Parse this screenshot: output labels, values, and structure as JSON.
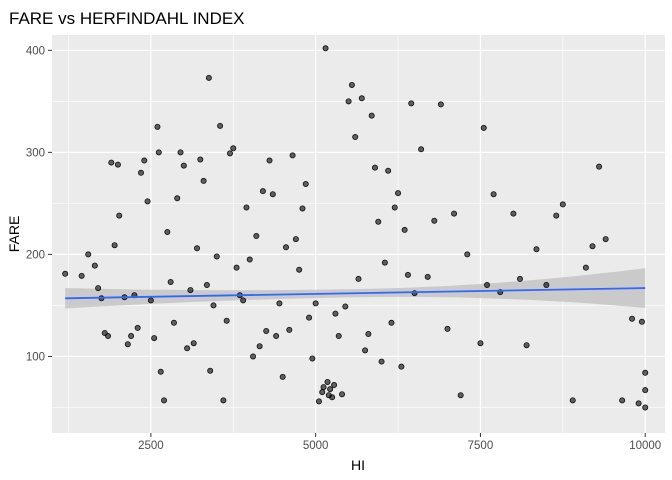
{
  "chart_data": {
    "type": "scatter",
    "title": "FARE vs HERFINDAHL INDEX",
    "xlabel": "HI",
    "ylabel": "FARE",
    "xlim": [
      1000,
      10300
    ],
    "ylim": [
      25,
      415
    ],
    "x_ticks": [
      2500,
      5000,
      7500,
      10000
    ],
    "x_tick_labels": [
      "2500",
      "5000",
      "7500",
      "10000"
    ],
    "y_ticks": [
      100,
      200,
      300,
      400
    ],
    "y_tick_labels": [
      "100",
      "200",
      "300",
      "400"
    ],
    "grid": true,
    "legend": "none",
    "colors": {
      "panel": "#ebebeb",
      "grid": "#ffffff",
      "point": "#000000",
      "trend": "#3366ff",
      "band": "#bfbfbf"
    },
    "trend_line": {
      "method": "lm",
      "x": [
        1200,
        10000
      ],
      "y": [
        157,
        167
      ]
    },
    "confidence_band": {
      "x": [
        1200,
        10000
      ],
      "lower": [
        147,
        148
      ],
      "upper": [
        167,
        187
      ]
    },
    "points": [
      [
        1200,
        181
      ],
      [
        1450,
        179
      ],
      [
        1550,
        200
      ],
      [
        1650,
        189
      ],
      [
        1700,
        167
      ],
      [
        1750,
        157
      ],
      [
        1800,
        123
      ],
      [
        1850,
        120
      ],
      [
        1900,
        290
      ],
      [
        1950,
        209
      ],
      [
        2000,
        288
      ],
      [
        2020,
        238
      ],
      [
        2100,
        158
      ],
      [
        2150,
        112
      ],
      [
        2200,
        120
      ],
      [
        2250,
        160
      ],
      [
        2300,
        128
      ],
      [
        2350,
        280
      ],
      [
        2400,
        292
      ],
      [
        2450,
        252
      ],
      [
        2500,
        155
      ],
      [
        2550,
        118
      ],
      [
        2600,
        325
      ],
      [
        2620,
        300
      ],
      [
        2650,
        85
      ],
      [
        2700,
        57
      ],
      [
        2750,
        222
      ],
      [
        2800,
        173
      ],
      [
        2850,
        133
      ],
      [
        2900,
        255
      ],
      [
        2950,
        300
      ],
      [
        3000,
        287
      ],
      [
        3050,
        108
      ],
      [
        3100,
        165
      ],
      [
        3150,
        113
      ],
      [
        3200,
        206
      ],
      [
        3250,
        293
      ],
      [
        3300,
        272
      ],
      [
        3350,
        170
      ],
      [
        3380,
        373
      ],
      [
        3400,
        86
      ],
      [
        3450,
        150
      ],
      [
        3500,
        198
      ],
      [
        3550,
        326
      ],
      [
        3600,
        57
      ],
      [
        3650,
        135
      ],
      [
        3700,
        299
      ],
      [
        3750,
        304
      ],
      [
        3800,
        187
      ],
      [
        3850,
        160
      ],
      [
        3900,
        155
      ],
      [
        3950,
        246
      ],
      [
        4000,
        195
      ],
      [
        4050,
        100
      ],
      [
        4100,
        218
      ],
      [
        4150,
        110
      ],
      [
        4200,
        262
      ],
      [
        4250,
        125
      ],
      [
        4300,
        292
      ],
      [
        4350,
        259
      ],
      [
        4400,
        120
      ],
      [
        4450,
        152
      ],
      [
        4500,
        80
      ],
      [
        4550,
        207
      ],
      [
        4600,
        126
      ],
      [
        4650,
        297
      ],
      [
        4700,
        215
      ],
      [
        4750,
        185
      ],
      [
        4800,
        245
      ],
      [
        4850,
        269
      ],
      [
        4900,
        138
      ],
      [
        4950,
        98
      ],
      [
        5000,
        152
      ],
      [
        5050,
        56
      ],
      [
        5100,
        65
      ],
      [
        5120,
        70
      ],
      [
        5150,
        402
      ],
      [
        5180,
        75
      ],
      [
        5200,
        62
      ],
      [
        5220,
        68
      ],
      [
        5250,
        60
      ],
      [
        5280,
        72
      ],
      [
        5300,
        142
      ],
      [
        5350,
        120
      ],
      [
        5400,
        63
      ],
      [
        5450,
        149
      ],
      [
        5500,
        350
      ],
      [
        5550,
        366
      ],
      [
        5600,
        315
      ],
      [
        5650,
        176
      ],
      [
        5700,
        353
      ],
      [
        5750,
        106
      ],
      [
        5800,
        122
      ],
      [
        5850,
        336
      ],
      [
        5900,
        285
      ],
      [
        5950,
        232
      ],
      [
        6000,
        95
      ],
      [
        6050,
        192
      ],
      [
        6100,
        282
      ],
      [
        6150,
        133
      ],
      [
        6200,
        246
      ],
      [
        6250,
        260
      ],
      [
        6300,
        90
      ],
      [
        6350,
        224
      ],
      [
        6400,
        180
      ],
      [
        6450,
        348
      ],
      [
        6500,
        162
      ],
      [
        6600,
        303
      ],
      [
        6700,
        178
      ],
      [
        6800,
        233
      ],
      [
        6900,
        347
      ],
      [
        7000,
        127
      ],
      [
        7100,
        240
      ],
      [
        7200,
        62
      ],
      [
        7300,
        200
      ],
      [
        7500,
        113
      ],
      [
        7550,
        324
      ],
      [
        7600,
        170
      ],
      [
        7700,
        259
      ],
      [
        7800,
        163
      ],
      [
        8000,
        240
      ],
      [
        8100,
        176
      ],
      [
        8200,
        111
      ],
      [
        8350,
        205
      ],
      [
        8500,
        170
      ],
      [
        8650,
        238
      ],
      [
        8750,
        249
      ],
      [
        8900,
        57
      ],
      [
        9100,
        187
      ],
      [
        9200,
        208
      ],
      [
        9300,
        286
      ],
      [
        9400,
        215
      ],
      [
        9650,
        57
      ],
      [
        9800,
        137
      ],
      [
        9900,
        54
      ],
      [
        9950,
        134
      ],
      [
        10000,
        84
      ],
      [
        10000,
        50
      ],
      [
        10000,
        67
      ]
    ]
  }
}
